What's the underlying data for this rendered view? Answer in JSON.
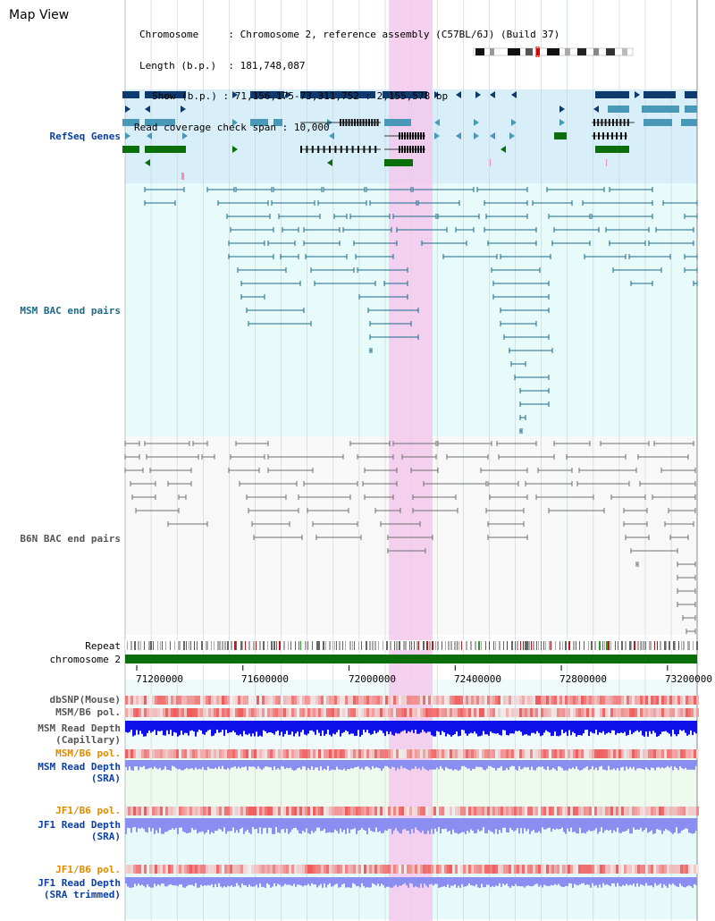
{
  "page_title": "Map View",
  "info": {
    "chromosome_label": "Chromosome",
    "chromosome_value": "Chromosome 2, reference assembly (C57BL/6J) (Build 37)",
    "length_label": "Length (b.p.)",
    "length_value": "181,748,087",
    "show_label": "Show (b.p.)",
    "show_value": "71,156,175-73,311,752 : 2,155,578 bp",
    "coverage_label": "Read coverage check span",
    "coverage_value": "10,000"
  },
  "tracks": {
    "refseq": "RefSeq Genes",
    "msm_bac": "MSM BAC end pairs",
    "b6n_bac": "B6N BAC end pairs",
    "repeat": "Repeat",
    "chromosome": "chromosome 2",
    "dbsnp": "dbSNP(Mouse)",
    "msm_b6_pol_1": "MSM/B6 pol.",
    "msm_depth_cap_1": "MSM Read Depth",
    "msm_depth_cap_2": "(Capillary)",
    "msm_b6_pol_2": "MSM/B6 pol.",
    "msm_depth_sra_1": "MSM Read Depth",
    "msm_depth_sra_2": "(SRA)",
    "jf1_b6_pol_1": "JF1/B6 pol.",
    "jf1_depth_sra_1": "JF1 Read Depth",
    "jf1_depth_sra_2": "(SRA)",
    "jf1_b6_pol_2": "JF1/B6 pol.",
    "jf1_depth_trim_1": "JF1 Read Depth",
    "jf1_depth_trim_2": "(SRA trimmed)"
  },
  "axis": {
    "ticks": [
      "71200000",
      "71600000",
      "72000000",
      "72400000",
      "72800000",
      "73200000"
    ],
    "tick_values": [
      71200000,
      71600000,
      72000000,
      72400000,
      72800000,
      73200000
    ],
    "range": [
      71156175,
      73311752
    ]
  },
  "highlight": {
    "start_bp": 72150000,
    "end_bp": 72315000
  },
  "colors": {
    "refseq_dark": "#0f3a6e",
    "refseq_mid": "#4a98b8",
    "refseq_green": "#0a6e0a",
    "msm_bac": "#1b6a8a",
    "b6n_bac": "#707070",
    "highlight": "#f5c8ec",
    "chromosome_bar": "#0a6e0a",
    "depth_capillary": "#1010e8",
    "depth_sra": "#8a8ef0",
    "pol": "#f05a5a"
  }
}
